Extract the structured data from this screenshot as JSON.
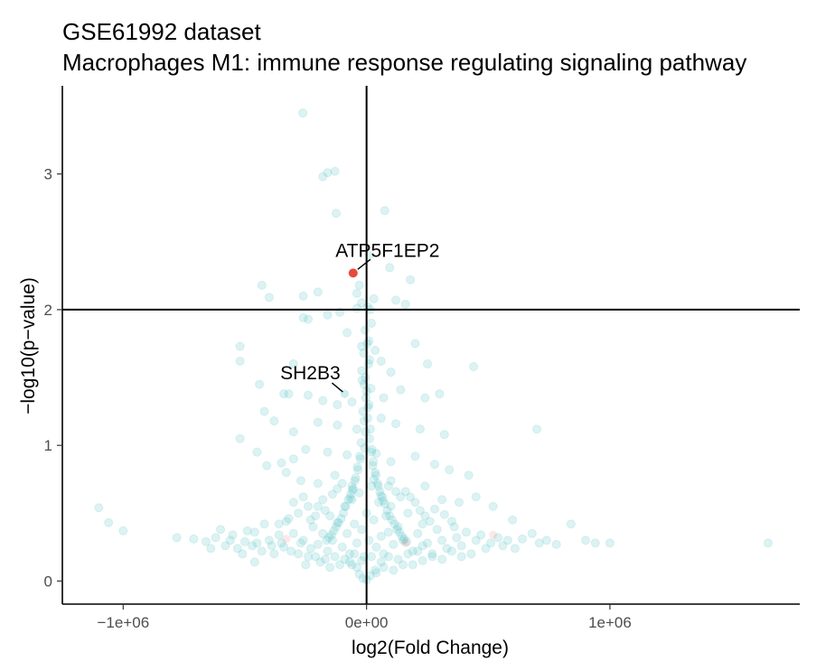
{
  "chart_data": {
    "type": "scatter",
    "title": "GSE61992 dataset",
    "subtitle": "Macrophages M1: immune response regulating signaling pathway",
    "xlabel": "log2(Fold Change)",
    "ylabel": "−log10(p−value)",
    "xlim": [
      -1250000,
      1780000
    ],
    "ylim": [
      -0.17,
      3.65
    ],
    "x_ticks": [
      {
        "value": -1000000,
        "label": "−1e+06"
      },
      {
        "value": 0,
        "label": "0e+00"
      },
      {
        "value": 1000000,
        "label": "1e+06"
      }
    ],
    "y_ticks": [
      {
        "value": 0,
        "label": "0"
      },
      {
        "value": 1,
        "label": "1"
      },
      {
        "value": 2,
        "label": "2"
      },
      {
        "value": 3,
        "label": "3"
      }
    ],
    "reference_lines": {
      "vertical_x": 0,
      "horizontal_y": 2
    },
    "grid": false,
    "colors": {
      "background_points": "#5ec4c8",
      "highlight_points": "#e8473b",
      "axis": "#000000",
      "tick_text": "#4d4d4d"
    },
    "background_points": {
      "color": "#5ec4c8",
      "opacity": 0.22,
      "points": [
        [
          -262000,
          3.45
        ],
        [
          -130000,
          3.02
        ],
        [
          -160000,
          3.01
        ],
        [
          -180000,
          2.98
        ],
        [
          75000,
          2.73
        ],
        [
          -125000,
          2.71
        ],
        [
          10000,
          2.4
        ],
        [
          95000,
          2.31
        ],
        [
          180000,
          2.22
        ],
        [
          -30000,
          2.18
        ],
        [
          -40000,
          2.12
        ],
        [
          -200000,
          2.13
        ],
        [
          -400000,
          2.09
        ],
        [
          -430000,
          2.18
        ],
        [
          -260000,
          2.1
        ],
        [
          -20000,
          2.05
        ],
        [
          30000,
          2.08
        ],
        [
          120000,
          2.07
        ],
        [
          160000,
          2.04
        ],
        [
          -40000,
          2.01
        ],
        [
          5000,
          2.02
        ],
        [
          15000,
          2.0
        ],
        [
          -160000,
          1.96
        ],
        [
          -110000,
          1.98
        ],
        [
          -260000,
          1.94
        ],
        [
          -240000,
          1.93
        ],
        [
          20000,
          1.9
        ],
        [
          -520000,
          1.73
        ],
        [
          -520000,
          1.62
        ],
        [
          -80000,
          1.83
        ],
        [
          10000,
          1.77
        ],
        [
          -20000,
          1.73
        ],
        [
          35000,
          1.7
        ],
        [
          60000,
          1.62
        ],
        [
          200000,
          1.75
        ],
        [
          250000,
          1.6
        ],
        [
          -300000,
          1.6
        ],
        [
          440000,
          1.58
        ],
        [
          100000,
          1.54
        ],
        [
          -340000,
          1.38
        ],
        [
          -440000,
          1.45
        ],
        [
          -320000,
          1.38
        ],
        [
          -240000,
          1.37
        ],
        [
          -180000,
          1.33
        ],
        [
          -120000,
          1.3
        ],
        [
          -60000,
          1.32
        ],
        [
          70000,
          1.35
        ],
        [
          140000,
          1.41
        ],
        [
          240000,
          1.35
        ],
        [
          300000,
          1.38
        ],
        [
          -420000,
          1.25
        ],
        [
          -380000,
          1.18
        ],
        [
          -300000,
          1.1
        ],
        [
          -200000,
          1.17
        ],
        [
          -120000,
          1.15
        ],
        [
          -40000,
          1.12
        ],
        [
          60000,
          1.2
        ],
        [
          120000,
          1.16
        ],
        [
          220000,
          1.12
        ],
        [
          320000,
          1.08
        ],
        [
          700000,
          1.12
        ],
        [
          -520000,
          1.05
        ],
        [
          -450000,
          0.95
        ],
        [
          -350000,
          0.87
        ],
        [
          -300000,
          0.9
        ],
        [
          -250000,
          0.97
        ],
        [
          -160000,
          0.95
        ],
        [
          -80000,
          0.93
        ],
        [
          40000,
          0.94
        ],
        [
          100000,
          0.88
        ],
        [
          200000,
          0.92
        ],
        [
          280000,
          0.86
        ],
        [
          340000,
          0.82
        ],
        [
          420000,
          0.78
        ],
        [
          -410000,
          0.85
        ],
        [
          -330000,
          0.8
        ],
        [
          -270000,
          0.74
        ],
        [
          -200000,
          0.72
        ],
        [
          -130000,
          0.78
        ],
        [
          -60000,
          0.7
        ],
        [
          30000,
          0.75
        ],
        [
          90000,
          0.7
        ],
        [
          160000,
          0.66
        ],
        [
          240000,
          0.7
        ],
        [
          310000,
          0.6
        ],
        [
          380000,
          0.58
        ],
        [
          450000,
          0.62
        ],
        [
          520000,
          0.55
        ],
        [
          600000,
          0.45
        ],
        [
          -1100000,
          0.54
        ],
        [
          -1060000,
          0.43
        ],
        [
          -1000000,
          0.37
        ],
        [
          -780000,
          0.32
        ],
        [
          -710000,
          0.31
        ],
        [
          -660000,
          0.29
        ],
        [
          -600000,
          0.38
        ],
        [
          -560000,
          0.3
        ],
        [
          -530000,
          0.24
        ],
        [
          -500000,
          0.29
        ],
        [
          -490000,
          0.37
        ],
        [
          -460000,
          0.36
        ],
        [
          -450000,
          0.28
        ],
        [
          -420000,
          0.42
        ],
        [
          -400000,
          0.3
        ],
        [
          -380000,
          0.2
        ],
        [
          -360000,
          0.34
        ],
        [
          -340000,
          0.25
        ],
        [
          -330000,
          0.44
        ],
        [
          -300000,
          0.35
        ],
        [
          -280000,
          0.2
        ],
        [
          -260000,
          0.3
        ],
        [
          -240000,
          0.18
        ],
        [
          -220000,
          0.4
        ],
        [
          -200000,
          0.27
        ],
        [
          -180000,
          0.35
        ],
        [
          -160000,
          0.22
        ],
        [
          -150000,
          0.48
        ],
        [
          -140000,
          0.3
        ],
        [
          -120000,
          0.43
        ],
        [
          -100000,
          0.25
        ],
        [
          -90000,
          0.55
        ],
        [
          -80000,
          0.35
        ],
        [
          -70000,
          0.2
        ],
        [
          -60000,
          0.6
        ],
        [
          -50000,
          0.42
        ],
        [
          -40000,
          0.28
        ],
        [
          -30000,
          0.65
        ],
        [
          -20000,
          0.38
        ],
        [
          -10000,
          0.18
        ],
        [
          0,
          0.5
        ],
        [
          10000,
          0.3
        ],
        [
          20000,
          0.7
        ],
        [
          30000,
          0.45
        ],
        [
          40000,
          0.25
        ],
        [
          50000,
          0.58
        ],
        [
          60000,
          0.33
        ],
        [
          70000,
          0.2
        ],
        [
          80000,
          0.48
        ],
        [
          90000,
          0.36
        ],
        [
          100000,
          0.55
        ],
        [
          110000,
          0.27
        ],
        [
          130000,
          0.4
        ],
        [
          150000,
          0.3
        ],
        [
          170000,
          0.5
        ],
        [
          190000,
          0.22
        ],
        [
          210000,
          0.35
        ],
        [
          230000,
          0.42
        ],
        [
          250000,
          0.28
        ],
        [
          270000,
          0.2
        ],
        [
          290000,
          0.38
        ],
        [
          310000,
          0.3
        ],
        [
          330000,
          0.24
        ],
        [
          350000,
          0.44
        ],
        [
          370000,
          0.32
        ],
        [
          390000,
          0.26
        ],
        [
          410000,
          0.36
        ],
        [
          430000,
          0.2
        ],
        [
          450000,
          0.3
        ],
        [
          470000,
          0.34
        ],
        [
          490000,
          0.24
        ],
        [
          510000,
          0.28
        ],
        [
          540000,
          0.32
        ],
        [
          560000,
          0.26
        ],
        [
          580000,
          0.3
        ],
        [
          610000,
          0.24
        ],
        [
          640000,
          0.31
        ],
        [
          680000,
          0.35
        ],
        [
          710000,
          0.28
        ],
        [
          740000,
          0.3
        ],
        [
          780000,
          0.27
        ],
        [
          840000,
          0.42
        ],
        [
          900000,
          0.3
        ],
        [
          940000,
          0.28
        ],
        [
          1000000,
          0.28
        ],
        [
          1650000,
          0.28
        ],
        [
          -460000,
          0.14
        ],
        [
          -250000,
          0.12
        ],
        [
          -150000,
          0.1
        ],
        [
          -60000,
          0.12
        ],
        [
          60000,
          0.14
        ],
        [
          150000,
          0.12
        ],
        [
          230000,
          0.15
        ],
        [
          -30000,
          0.05
        ],
        [
          -15000,
          0.02
        ],
        [
          0,
          0.01
        ],
        [
          15000,
          0.04
        ],
        [
          35000,
          0.08
        ],
        [
          -50000,
          0.2
        ],
        [
          -20000,
          1.55
        ],
        [
          -10000,
          1.45
        ],
        [
          0,
          1.4
        ],
        [
          10000,
          1.3
        ],
        [
          -15000,
          1.25
        ],
        [
          5000,
          1.2
        ],
        [
          -5000,
          1.1
        ],
        [
          12000,
          1.05
        ],
        [
          -8000,
          0.98
        ],
        [
          20000,
          0.95
        ],
        [
          -25000,
          0.9
        ],
        [
          25000,
          0.85
        ],
        [
          -35000,
          0.82
        ],
        [
          35000,
          0.8
        ],
        [
          -45000,
          0.76
        ],
        [
          45000,
          0.72
        ],
        [
          -55000,
          0.68
        ],
        [
          55000,
          0.66
        ],
        [
          -65000,
          0.64
        ],
        [
          65000,
          0.62
        ],
        [
          -75000,
          0.6
        ],
        [
          75000,
          0.57
        ],
        [
          -85000,
          0.55
        ],
        [
          85000,
          0.52
        ],
        [
          -95000,
          0.5
        ],
        [
          95000,
          0.48
        ],
        [
          -105000,
          0.46
        ],
        [
          105000,
          0.45
        ],
        [
          -115000,
          0.43
        ],
        [
          115000,
          0.42
        ],
        [
          -125000,
          0.4
        ],
        [
          125000,
          0.38
        ],
        [
          -135000,
          0.37
        ],
        [
          135000,
          0.36
        ],
        [
          -145000,
          0.34
        ],
        [
          145000,
          0.33
        ],
        [
          -155000,
          0.32
        ],
        [
          155000,
          0.31
        ],
        [
          -165000,
          0.3
        ],
        [
          165000,
          0.29
        ],
        [
          -5000,
          1.5
        ],
        [
          8000,
          1.6
        ],
        [
          -12000,
          1.68
        ],
        [
          3000,
          1.75
        ],
        [
          -6000,
          1.85
        ],
        [
          12000,
          1.63
        ],
        [
          -18000,
          1.48
        ],
        [
          18000,
          1.42
        ],
        [
          -3000,
          1.35
        ],
        [
          6000,
          1.28
        ],
        [
          -10000,
          1.18
        ],
        [
          16000,
          1.12
        ],
        [
          -22000,
          1.02
        ],
        [
          22000,
          0.97
        ],
        [
          -28000,
          0.92
        ],
        [
          28000,
          0.88
        ],
        [
          -38000,
          0.84
        ],
        [
          38000,
          0.78
        ],
        [
          -48000,
          0.74
        ],
        [
          48000,
          0.7
        ],
        [
          -58000,
          0.67
        ],
        [
          58000,
          0.63
        ],
        [
          -68000,
          0.61
        ],
        [
          68000,
          0.59
        ],
        [
          -200000,
          0.55
        ],
        [
          -180000,
          0.6
        ],
        [
          -170000,
          0.52
        ],
        [
          -210000,
          0.48
        ],
        [
          -230000,
          0.45
        ],
        [
          200000,
          0.58
        ],
        [
          220000,
          0.52
        ],
        [
          180000,
          0.62
        ],
        [
          240000,
          0.48
        ],
        [
          260000,
          0.44
        ],
        [
          -240000,
          0.55
        ],
        [
          -280000,
          0.5
        ],
        [
          -320000,
          0.46
        ],
        [
          280000,
          0.53
        ],
        [
          320000,
          0.49
        ],
        [
          360000,
          0.4
        ],
        [
          -360000,
          0.42
        ],
        [
          -260000,
          0.62
        ],
        [
          -300000,
          0.58
        ],
        [
          -120000,
          0.68
        ],
        [
          -100000,
          0.72
        ],
        [
          -140000,
          0.64
        ],
        [
          120000,
          0.66
        ],
        [
          140000,
          0.62
        ],
        [
          100000,
          0.74
        ],
        [
          -20000,
          0.15
        ],
        [
          20000,
          0.18
        ],
        [
          -40000,
          0.1
        ],
        [
          40000,
          0.06
        ],
        [
          -70000,
          0.14
        ],
        [
          70000,
          0.1
        ],
        [
          -90000,
          0.16
        ],
        [
          90000,
          0.18
        ],
        [
          -110000,
          0.12
        ],
        [
          110000,
          0.08
        ],
        [
          -130000,
          0.18
        ],
        [
          130000,
          0.16
        ],
        [
          -170000,
          0.16
        ],
        [
          170000,
          0.2
        ],
        [
          -190000,
          0.14
        ],
        [
          190000,
          0.12
        ],
        [
          -210000,
          0.18
        ],
        [
          210000,
          0.22
        ],
        [
          -230000,
          0.24
        ],
        [
          230000,
          0.26
        ],
        [
          -270000,
          0.28
        ],
        [
          270000,
          0.18
        ],
        [
          -310000,
          0.22
        ],
        [
          310000,
          0.16
        ],
        [
          -350000,
          0.28
        ],
        [
          350000,
          0.22
        ],
        [
          -390000,
          0.26
        ],
        [
          390000,
          0.18
        ],
        [
          -430000,
          0.22
        ],
        [
          -470000,
          0.26
        ],
        [
          -510000,
          0.2
        ],
        [
          -550000,
          0.34
        ],
        [
          -580000,
          0.26
        ],
        [
          -620000,
          0.32
        ],
        [
          -640000,
          0.24
        ]
      ]
    },
    "highlight_points": [
      {
        "x": -55000,
        "y": 2.27,
        "label": "ATP5F1EP2"
      },
      {
        "x": -90000,
        "y": 1.38,
        "label": "SH2B3"
      }
    ],
    "faint_highlight_points": [
      [
        520000,
        0.34
      ],
      [
        -330000,
        0.31
      ],
      [
        160000,
        0.28
      ]
    ]
  }
}
